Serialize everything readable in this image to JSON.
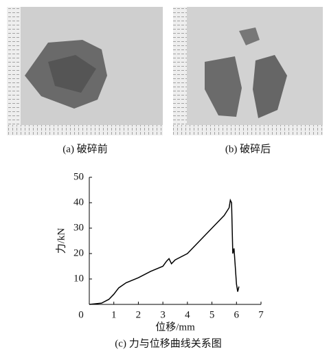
{
  "panels": [
    {
      "caption": "(a) 破碎前"
    },
    {
      "caption": "(b) 破碎后"
    }
  ],
  "chart_data": {
    "type": "line",
    "caption": "(c) 力与位移曲线关系图",
    "x_label": "位移/mm",
    "y_label": "力/kN",
    "x": [
      0,
      0.5,
      0.8,
      1.0,
      1.2,
      1.5,
      2.0,
      2.5,
      3.0,
      3.15,
      3.25,
      3.35,
      3.5,
      4.0,
      4.5,
      5.0,
      5.5,
      5.7,
      5.75,
      5.8,
      5.85,
      5.9,
      5.95,
      6.0,
      6.05,
      6.1
    ],
    "series": [
      {
        "color": "#000000",
        "values": [
          0,
          0.5,
          2,
          4,
          6.5,
          8.5,
          10.5,
          13,
          15,
          17,
          18,
          16,
          17.5,
          20,
          25,
          30,
          35,
          38,
          41,
          40,
          20,
          22,
          15,
          8,
          5,
          7
        ]
      }
    ],
    "xlim": [
      0,
      7
    ],
    "ylim": [
      0,
      50
    ],
    "xticks": [
      0,
      1,
      2,
      3,
      4,
      5,
      6,
      7
    ],
    "yticks": [
      10,
      20,
      30,
      40,
      50
    ]
  }
}
